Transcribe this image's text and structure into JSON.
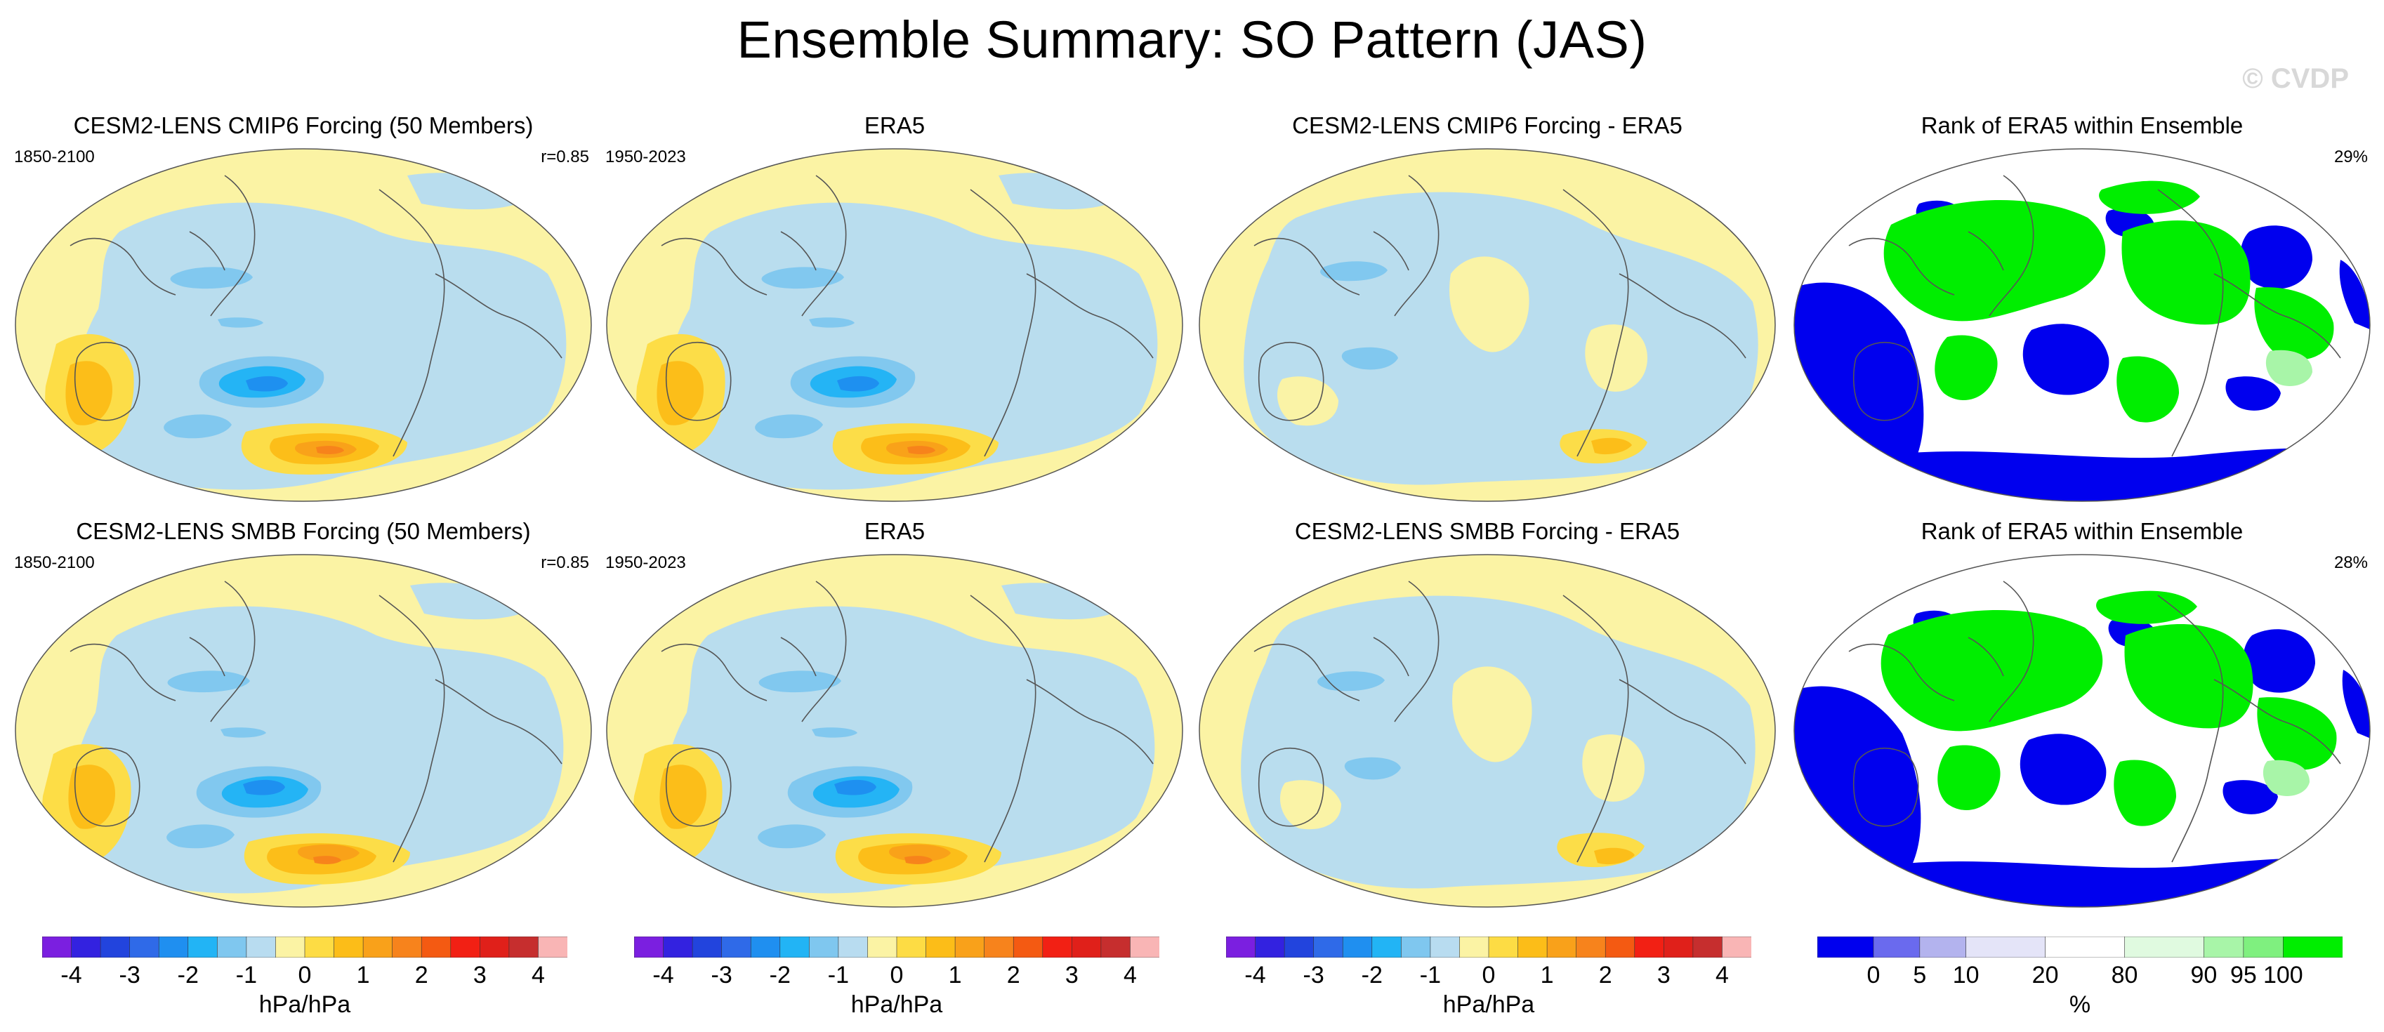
{
  "title": "Ensemble Summary: SO Pattern (JAS)",
  "watermark": "© CVDP",
  "colors": {
    "background": "#ffffff",
    "ocean_neg_light": "#b8dcf0",
    "land_pos_light": "#fbf3a4",
    "coast": "#555555"
  },
  "panels": [
    {
      "id": "r1c1",
      "title": "CESM2-LENS CMIP6 Forcing (50 Members)",
      "left": "1850-2100",
      "right": "r=0.85",
      "kind": "pattern"
    },
    {
      "id": "r1c2",
      "title": "ERA5",
      "left": "1950-2023",
      "right": "",
      "kind": "pattern"
    },
    {
      "id": "r1c3",
      "title": "CESM2-LENS CMIP6 Forcing - ERA5",
      "left": "",
      "right": "",
      "kind": "diff"
    },
    {
      "id": "r1c4",
      "title": "Rank of ERA5 within Ensemble",
      "left": "",
      "right": "29%",
      "kind": "rank"
    },
    {
      "id": "r2c1",
      "title": "CESM2-LENS SMBB Forcing (50 Members)",
      "left": "1850-2100",
      "right": "r=0.85",
      "kind": "pattern"
    },
    {
      "id": "r2c2",
      "title": "ERA5",
      "left": "1950-2023",
      "right": "",
      "kind": "pattern"
    },
    {
      "id": "r2c3",
      "title": "CESM2-LENS SMBB Forcing - ERA5",
      "left": "",
      "right": "",
      "kind": "diff"
    },
    {
      "id": "r2c4",
      "title": "Rank of ERA5 within Ensemble",
      "left": "",
      "right": "28%",
      "kind": "rank"
    }
  ],
  "chart_data": {
    "type": "heatmap",
    "description_units": "hPa/hPa",
    "colorbar_slp": {
      "units": "hPa/hPa",
      "ticks": [
        "-4",
        "-3",
        "-2",
        "-1",
        "0",
        "1",
        "2",
        "3",
        "4"
      ],
      "colors": [
        "#7b1fe0",
        "#3322e0",
        "#2244dd",
        "#2f6ae8",
        "#1f8ff0",
        "#22b4f5",
        "#7fc7ef",
        "#b8dcf0",
        "#fbf3a4",
        "#fddc44",
        "#fcbd18",
        "#f9a11a",
        "#f7831c",
        "#f45a12",
        "#f22014",
        "#e0201a",
        "#c62e2e",
        "#f9b5b5"
      ]
    },
    "colorbar_rank": {
      "units": "%",
      "ticks": [
        "0",
        "5",
        "10",
        "20",
        "80",
        "90",
        "95",
        "100"
      ],
      "tick_values": [
        0,
        5,
        10,
        20,
        80,
        90,
        95,
        100
      ],
      "colors": [
        "#0000ee",
        "#6a6aee",
        "#b3b3ee",
        "#e4e4f8",
        "#ffffff",
        "#e0fae0",
        "#a8f5a8",
        "#7ff07f",
        "#00ee00"
      ]
    }
  }
}
